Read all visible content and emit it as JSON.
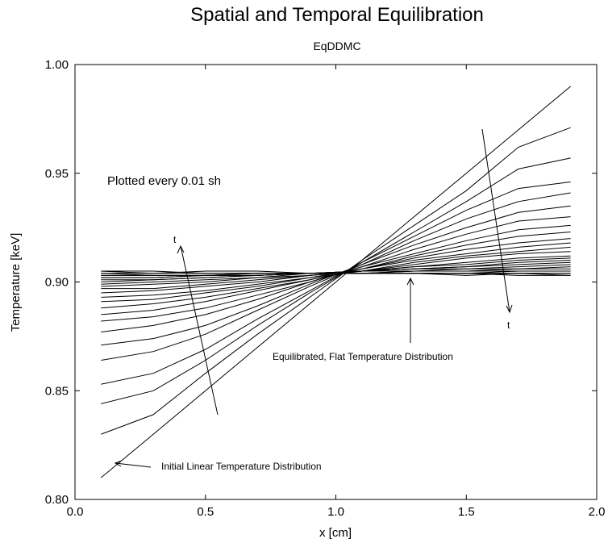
{
  "chart_data": {
    "type": "line",
    "title": "Spatial and Temporal Equilibration",
    "subtitle": "EqDDMC",
    "xlabel": "x [cm]",
    "ylabel": "Temperature [keV]",
    "xlim": [
      0.0,
      2.0
    ],
    "ylim": [
      0.8,
      1.0
    ],
    "xticks": [
      "0.0",
      "0.5",
      "1.0",
      "1.5",
      "2.0"
    ],
    "yticks": [
      "0.80",
      "0.85",
      "0.90",
      "0.95",
      "1.00"
    ],
    "grid": false,
    "x": [
      0.1,
      0.3,
      0.5,
      0.7,
      0.9,
      1.1,
      1.3,
      1.5,
      1.7,
      1.9
    ],
    "series": [
      {
        "values": [
          0.81,
          0.83,
          0.85,
          0.87,
          0.89,
          0.91,
          0.93,
          0.95,
          0.97,
          0.99
        ]
      },
      {
        "values": [
          0.83,
          0.839,
          0.858,
          0.876,
          0.893,
          0.91,
          0.926,
          0.942,
          0.962,
          0.971
        ]
      },
      {
        "values": [
          0.844,
          0.85,
          0.864,
          0.88,
          0.895,
          0.909,
          0.923,
          0.937,
          0.952,
          0.957
        ]
      },
      {
        "values": [
          0.853,
          0.858,
          0.869,
          0.883,
          0.896,
          0.909,
          0.921,
          0.933,
          0.943,
          0.946
        ]
      },
      {
        "values": [
          0.864,
          0.868,
          0.876,
          0.887,
          0.898,
          0.908,
          0.919,
          0.929,
          0.937,
          0.941
        ]
      },
      {
        "values": [
          0.871,
          0.874,
          0.88,
          0.889,
          0.899,
          0.908,
          0.917,
          0.925,
          0.932,
          0.935
        ]
      },
      {
        "values": [
          0.877,
          0.88,
          0.885,
          0.892,
          0.9,
          0.907,
          0.915,
          0.922,
          0.928,
          0.93
        ]
      },
      {
        "values": [
          0.882,
          0.884,
          0.888,
          0.894,
          0.9,
          0.907,
          0.913,
          0.919,
          0.924,
          0.926
        ]
      },
      {
        "values": [
          0.885,
          0.887,
          0.891,
          0.896,
          0.901,
          0.906,
          0.912,
          0.917,
          0.921,
          0.923
        ]
      },
      {
        "values": [
          0.888,
          0.89,
          0.893,
          0.897,
          0.901,
          0.906,
          0.911,
          0.915,
          0.918,
          0.92
        ]
      },
      {
        "values": [
          0.891,
          0.892,
          0.895,
          0.898,
          0.902,
          0.906,
          0.91,
          0.913,
          0.916,
          0.918
        ]
      },
      {
        "values": [
          0.893,
          0.894,
          0.896,
          0.899,
          0.902,
          0.905,
          0.909,
          0.912,
          0.914,
          0.916
        ]
      },
      {
        "values": [
          0.895,
          0.896,
          0.898,
          0.9,
          0.903,
          0.905,
          0.908,
          0.911,
          0.913,
          0.914
        ]
      },
      {
        "values": [
          0.897,
          0.897,
          0.899,
          0.901,
          0.903,
          0.905,
          0.907,
          0.909,
          0.911,
          0.912
        ]
      },
      {
        "values": [
          0.898,
          0.899,
          0.9,
          0.902,
          0.903,
          0.905,
          0.907,
          0.908,
          0.91,
          0.911
        ]
      },
      {
        "values": [
          0.899,
          0.9,
          0.901,
          0.902,
          0.904,
          0.905,
          0.906,
          0.907,
          0.909,
          0.91
        ]
      },
      {
        "values": [
          0.9,
          0.901,
          0.902,
          0.903,
          0.904,
          0.905,
          0.906,
          0.907,
          0.908,
          0.909
        ]
      },
      {
        "values": [
          0.901,
          0.901,
          0.902,
          0.903,
          0.904,
          0.905,
          0.906,
          0.906,
          0.907,
          0.908
        ]
      },
      {
        "values": [
          0.902,
          0.902,
          0.903,
          0.903,
          0.904,
          0.905,
          0.905,
          0.906,
          0.906,
          0.907
        ]
      },
      {
        "values": [
          0.902,
          0.902,
          0.903,
          0.903,
          0.904,
          0.904,
          0.905,
          0.905,
          0.906,
          0.906
        ]
      },
      {
        "values": [
          0.903,
          0.903,
          0.903,
          0.903,
          0.904,
          0.904,
          0.905,
          0.905,
          0.905,
          0.905
        ]
      },
      {
        "values": [
          0.903,
          0.903,
          0.903,
          0.904,
          0.904,
          0.904,
          0.904,
          0.904,
          0.905,
          0.905
        ]
      },
      {
        "values": [
          0.904,
          0.903,
          0.903,
          0.904,
          0.904,
          0.904,
          0.904,
          0.904,
          0.904,
          0.904
        ]
      },
      {
        "values": [
          0.905,
          0.904,
          0.904,
          0.904,
          0.904,
          0.904,
          0.904,
          0.904,
          0.904,
          0.904
        ]
      },
      {
        "values": [
          0.905,
          0.905,
          0.904,
          0.904,
          0.904,
          0.904,
          0.904,
          0.904,
          0.903,
          0.903
        ]
      },
      {
        "values": [
          0.904,
          0.904,
          0.905,
          0.905,
          0.904,
          0.904,
          0.904,
          0.903,
          0.904,
          0.903
        ]
      }
    ],
    "annotations": [
      {
        "text": "Plotted every 0.01 sh"
      },
      {
        "text": "t"
      },
      {
        "text": "t"
      },
      {
        "text": "Equilibrated, Flat Temperature Distribution"
      },
      {
        "text": "Initial Linear Temperature Distribution"
      }
    ]
  }
}
